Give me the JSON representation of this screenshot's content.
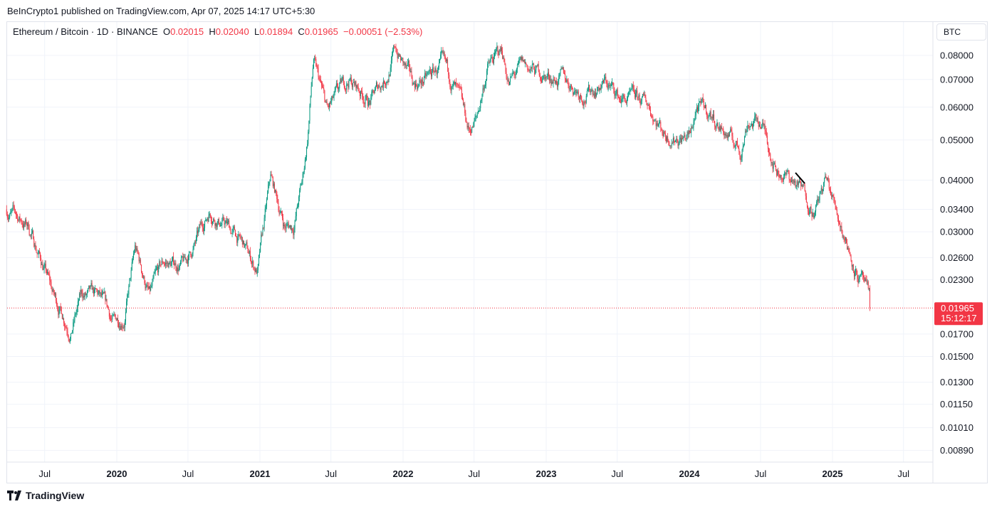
{
  "header": {
    "published": "BeInCrypto1 published on TradingView.com, Apr 07, 2025 14:17 UTC+5:30"
  },
  "legend": {
    "symbol": "Ethereum / Bitcoin · 1D · BINANCE",
    "open_label": "O",
    "open": "0.02015",
    "high_label": "H",
    "high": "0.02040",
    "low_label": "L",
    "low": "0.01894",
    "close_label": "C",
    "close": "0.01965",
    "change": "−0.00051 (−2.53%)"
  },
  "price_scale": {
    "unit": "BTC"
  },
  "last_price": {
    "value": "0.01965",
    "countdown": "15:12:17",
    "color": "#f23645"
  },
  "footer": {
    "brand": "TradingView"
  },
  "colors": {
    "up": "#089981",
    "down": "#f23645",
    "grid": "#f0f3fa"
  },
  "chart_data": {
    "type": "candlestick",
    "title": "Ethereum / Bitcoin · 1D · BINANCE",
    "y_scale": "log",
    "ylim": [
      0.0083,
      0.088
    ],
    "grid": true,
    "y_ticks": [
      "0.08000",
      "0.07000",
      "0.06000",
      "0.05000",
      "0.04000",
      "0.03400",
      "0.03000",
      "0.02600",
      "0.02300",
      "0.01700",
      "0.01500",
      "0.01300",
      "0.01150",
      "0.01010",
      "0.00890"
    ],
    "x_ticks": [
      {
        "label": "Jul",
        "date": "2019-07-01",
        "bold": false
      },
      {
        "label": "2020",
        "date": "2020-01-01",
        "bold": true
      },
      {
        "label": "Jul",
        "date": "2020-07-01",
        "bold": false
      },
      {
        "label": "2021",
        "date": "2021-01-01",
        "bold": true
      },
      {
        "label": "Jul",
        "date": "2021-07-01",
        "bold": false
      },
      {
        "label": "2022",
        "date": "2022-01-01",
        "bold": true
      },
      {
        "label": "Jul",
        "date": "2022-07-01",
        "bold": false
      },
      {
        "label": "2023",
        "date": "2023-01-01",
        "bold": true
      },
      {
        "label": "Jul",
        "date": "2023-07-01",
        "bold": false
      },
      {
        "label": "2024",
        "date": "2024-01-01",
        "bold": true
      },
      {
        "label": "Jul",
        "date": "2024-07-01",
        "bold": false
      },
      {
        "label": "2025",
        "date": "2025-01-01",
        "bold": true
      },
      {
        "label": "Jul",
        "date": "2025-07-01",
        "bold": false
      }
    ],
    "approx_close_path": [
      [
        "2019-03-26",
        0.034
      ],
      [
        "2019-05-20",
        0.031
      ],
      [
        "2019-07-04",
        0.024
      ],
      [
        "2019-07-23",
        0.021
      ],
      [
        "2019-09-06",
        0.0175
      ],
      [
        "2019-10-03",
        0.021
      ],
      [
        "2019-11-18",
        0.0205
      ],
      [
        "2019-12-24",
        0.018
      ],
      [
        "2020-01-21",
        0.019
      ],
      [
        "2020-02-17",
        0.027
      ],
      [
        "2020-03-25",
        0.021
      ],
      [
        "2020-04-30",
        0.025
      ],
      [
        "2020-06-23",
        0.025
      ],
      [
        "2020-07-20",
        0.028
      ],
      [
        "2020-08-26",
        0.034
      ],
      [
        "2020-10-10",
        0.031
      ],
      [
        "2020-11-16",
        0.028
      ],
      [
        "2020-12-26",
        0.024
      ],
      [
        "2021-01-28",
        0.04
      ],
      [
        "2021-03-05",
        0.031
      ],
      [
        "2021-03-27",
        0.031
      ],
      [
        "2021-04-20",
        0.04
      ],
      [
        "2021-05-02",
        0.05
      ],
      [
        "2021-05-17",
        0.077
      ],
      [
        "2021-06-22",
        0.058
      ],
      [
        "2021-08-16",
        0.07
      ],
      [
        "2021-10-09",
        0.062
      ],
      [
        "2021-11-24",
        0.073
      ],
      [
        "2021-12-12",
        0.083
      ],
      [
        "2022-01-26",
        0.068
      ],
      [
        "2022-03-03",
        0.07
      ],
      [
        "2022-04-09",
        0.075
      ],
      [
        "2022-05-15",
        0.066
      ],
      [
        "2022-06-17",
        0.052
      ],
      [
        "2022-07-08",
        0.056
      ],
      [
        "2022-08-04",
        0.075
      ],
      [
        "2022-09-10",
        0.082
      ],
      [
        "2022-09-28",
        0.069
      ],
      [
        "2022-11-03",
        0.075
      ],
      [
        "2022-12-19",
        0.072
      ],
      [
        "2023-02-12",
        0.07
      ],
      [
        "2023-04-08",
        0.065
      ],
      [
        "2023-06-01",
        0.069
      ],
      [
        "2023-07-07",
        0.063
      ],
      [
        "2023-09-17",
        0.061
      ],
      [
        "2023-11-01",
        0.052
      ],
      [
        "2024-01-04",
        0.051
      ],
      [
        "2024-01-19",
        0.06
      ],
      [
        "2024-02-28",
        0.057
      ],
      [
        "2024-05-11",
        0.047
      ],
      [
        "2024-05-29",
        0.056
      ],
      [
        "2024-07-04",
        0.055
      ],
      [
        "2024-08-10",
        0.043
      ],
      [
        "2024-10-03",
        0.039
      ],
      [
        "2024-11-18",
        0.034
      ],
      [
        "2024-12-15",
        0.04
      ],
      [
        "2025-01-30",
        0.03
      ],
      [
        "2025-02-26",
        0.025
      ],
      [
        "2025-03-25",
        0.022
      ],
      [
        "2025-04-07",
        0.01965
      ]
    ]
  }
}
